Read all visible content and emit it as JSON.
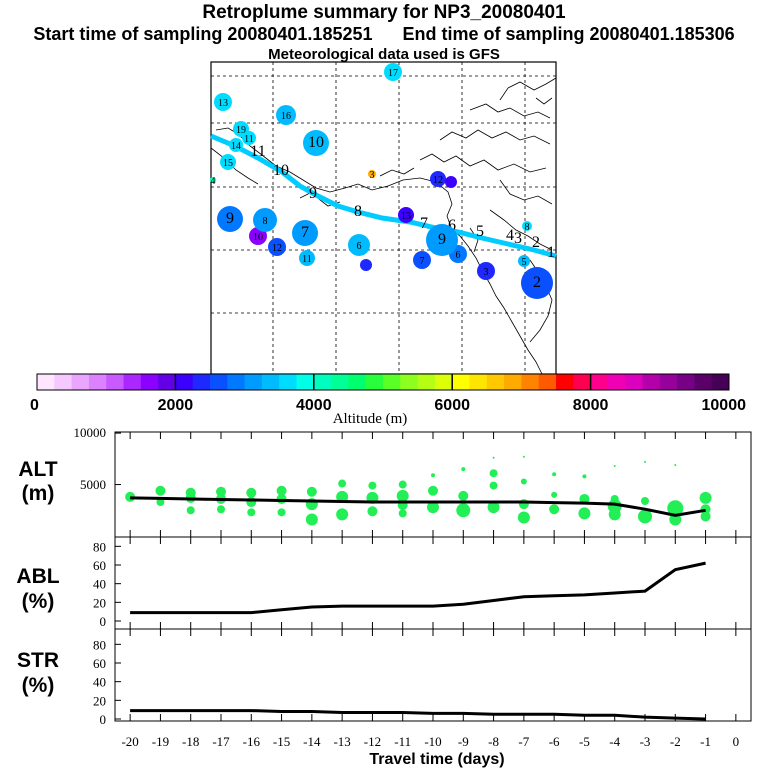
{
  "header": {
    "title": "Retroplume summary for NP3_20080401",
    "sampling_line": "Start time of sampling 20080401.185251      End time of sampling 20080401.185306",
    "met_line": "Meteorological data used is GFS"
  },
  "colorbar": {
    "label": "Altitude (m)",
    "ticks": [
      "0",
      "2000",
      "4000",
      "6000",
      "8000",
      "10000"
    ],
    "colors": [
      "#ffe6ff",
      "#f5c8ff",
      "#eaa6ff",
      "#dc82ff",
      "#c85aff",
      "#aa28ff",
      "#8c00ff",
      "#6400e6",
      "#3c00ff",
      "#1e28ff",
      "#0a50ff",
      "#0078ff",
      "#009bff",
      "#00bcff",
      "#00dcff",
      "#00ffe6",
      "#00ffbe",
      "#00ff96",
      "#00ff6e",
      "#28ff3c",
      "#5aff28",
      "#8cff1e",
      "#b4ff14",
      "#dcff0a",
      "#ffff00",
      "#ffe600",
      "#ffc800",
      "#ffaa00",
      "#ff8200",
      "#ff5a00",
      "#ff0000",
      "#ff0050",
      "#ff008c",
      "#f000b4",
      "#dc00be",
      "#b400aa",
      "#96009b",
      "#780087",
      "#5a0069",
      "#460055"
    ]
  },
  "map": {
    "trajectory_labels": [
      "1",
      "2",
      "3",
      "4",
      "5",
      "6",
      "7",
      "8",
      "9",
      "10",
      "11"
    ],
    "clusters": [
      {
        "label": "2",
        "size": 16,
        "color": "#0a50ff",
        "text_color": "#000"
      },
      {
        "label": "3",
        "size": 9,
        "color": "#1e28ff",
        "text_color": "#000"
      },
      {
        "label": "5",
        "size": 6,
        "color": "#00bcff",
        "text_color": "#000"
      },
      {
        "label": "6",
        "size": 9,
        "color": "#0078ff",
        "text_color": "#000"
      },
      {
        "label": "9",
        "size": 16,
        "color": "#009bff",
        "text_color": "#000"
      },
      {
        "label": "8",
        "size": 5,
        "color": "#00dcff",
        "text_color": "#000"
      },
      {
        "label": "12",
        "size": 8,
        "color": "#1e28ff",
        "text_color": "#000"
      },
      {
        "label": "13",
        "size": 8,
        "color": "#3c00ff",
        "text_color": "#000"
      },
      {
        "label": "3",
        "size": 4,
        "color": "#ffaa00",
        "text_color": "#000"
      },
      {
        "label": "7",
        "size": 9,
        "color": "#0a50ff",
        "text_color": "#000"
      },
      {
        "label": "7",
        "size": 13,
        "color": "#009bff",
        "text_color": "#000"
      },
      {
        "label": "6",
        "size": 11,
        "color": "#00bcff",
        "text_color": "#000"
      },
      {
        "label": "11",
        "size": 8,
        "color": "#00bcff",
        "text_color": "#000"
      },
      {
        "label": "12",
        "size": 9,
        "color": "#0a50ff",
        "text_color": "#000"
      },
      {
        "label": "10",
        "size": 9,
        "color": "#8c00ff",
        "text_color": "#000"
      },
      {
        "label": "9",
        "size": 13,
        "color": "#0078ff",
        "text_color": "#000"
      },
      {
        "label": "8",
        "size": 12,
        "color": "#009bff",
        "text_color": "#000"
      },
      {
        "label": "10",
        "size": 13,
        "color": "#00bcff",
        "text_color": "#000"
      },
      {
        "label": "16",
        "size": 10,
        "color": "#00bcff",
        "text_color": "#000"
      },
      {
        "label": "17",
        "size": 9,
        "color": "#00dcff",
        "text_color": "#000"
      },
      {
        "label": "13",
        "size": 9,
        "color": "#00dcff",
        "text_color": "#000"
      },
      {
        "label": "19",
        "size": 8,
        "color": "#00dcff",
        "text_color": "#000"
      },
      {
        "label": "15",
        "size": 8,
        "color": "#00dcff",
        "text_color": "#000"
      },
      {
        "label": "14",
        "size": 7,
        "color": "#00dcff",
        "text_color": "#000"
      },
      {
        "label": "11",
        "size": 7,
        "color": "#00dcff",
        "text_color": "#000"
      },
      {
        "label": "4",
        "size": 3,
        "color": "#00ffbe",
        "text_color": "#000"
      }
    ]
  },
  "axes": {
    "alt_label": [
      "ALT",
      "(m)"
    ],
    "abl_label": [
      "ABL",
      "(%)"
    ],
    "str_label": [
      "STR",
      "(%)"
    ],
    "alt_ticks": [
      "10000",
      "5000"
    ],
    "pct_ticks": [
      "80",
      "60",
      "40",
      "20",
      "0"
    ],
    "x_ticks": [
      "-20",
      "-19",
      "-18",
      "-17",
      "-16",
      "-15",
      "-14",
      "-13",
      "-12",
      "-11",
      "-10",
      "-9",
      "-8",
      "-7",
      "-6",
      "-5",
      "-4",
      "-3",
      "-2",
      "-1",
      "0"
    ],
    "xlabel": "Travel time (days)"
  },
  "chart_data": [
    {
      "type": "scatter",
      "title": "ALT (m)",
      "ylim": [
        0,
        10000
      ],
      "xlim": [
        -20,
        0
      ],
      "mean_line": {
        "x": [
          -20,
          -19,
          -18,
          -17,
          -16,
          -15,
          -14,
          -13,
          -12,
          -11,
          -10,
          -9,
          -8,
          -7,
          -6,
          -5,
          -4,
          -3,
          -2,
          -1
        ],
        "y": [
          3700,
          3650,
          3600,
          3550,
          3500,
          3450,
          3400,
          3350,
          3300,
          3300,
          3300,
          3300,
          3300,
          3300,
          3250,
          3200,
          3100,
          2600,
          2000,
          2500
        ]
      },
      "points": {
        "x": [
          -20,
          -19,
          -19,
          -18,
          -18,
          -18,
          -17,
          -17,
          -17,
          -16,
          -16,
          -16,
          -15,
          -15,
          -15,
          -14,
          -14,
          -14,
          -13,
          -13,
          -13,
          -12,
          -12,
          -12,
          -11,
          -11,
          -11,
          -11,
          -10,
          -10,
          -10,
          -9,
          -9,
          -9,
          -8,
          -8,
          -8,
          -8,
          -7,
          -7,
          -7,
          -7,
          -6,
          -6,
          -6,
          -5,
          -5,
          -5,
          -4,
          -4,
          -4,
          -4,
          -3,
          -3,
          -3,
          -2,
          -2,
          -2,
          -1,
          -1,
          -1
        ],
        "y": [
          3800,
          4400,
          3300,
          4200,
          3700,
          2500,
          4300,
          3600,
          2600,
          4200,
          3300,
          2300,
          4400,
          3600,
          2300,
          4300,
          3100,
          1600,
          5100,
          3800,
          2100,
          4900,
          3700,
          2400,
          5000,
          3900,
          3000,
          2200,
          5900,
          4400,
          2800,
          6500,
          3900,
          2500,
          7600,
          6100,
          4900,
          2800,
          7700,
          5300,
          3100,
          1800,
          6000,
          4000,
          2600,
          5800,
          3600,
          2200,
          6800,
          3600,
          2900,
          2100,
          7200,
          3400,
          1900,
          6900,
          2700,
          1600,
          3700,
          2600,
          1900
        ],
        "size": [
          5,
          5,
          4,
          5,
          5,
          4,
          5,
          5,
          4,
          5,
          5,
          4,
          5,
          5,
          4,
          5,
          6,
          6,
          4,
          6,
          6,
          4,
          6,
          5,
          4,
          6,
          5,
          4,
          2,
          5,
          6,
          2,
          5,
          7,
          1,
          4,
          4,
          6,
          1,
          3,
          5,
          6,
          2,
          3,
          5,
          2,
          5,
          6,
          1,
          4,
          7,
          6,
          1,
          4,
          7,
          1,
          8,
          6,
          6,
          5,
          5
        ]
      }
    },
    {
      "type": "line",
      "title": "ABL (%)",
      "ylim": [
        0,
        90
      ],
      "x": [
        -20,
        -19,
        -18,
        -17,
        -16,
        -15,
        -14,
        -13,
        -12,
        -11,
        -10,
        -9,
        -8,
        -7,
        -6,
        -5,
        -4,
        -3,
        -2,
        -1
      ],
      "y": [
        9,
        9,
        9,
        9,
        9,
        12,
        15,
        16,
        16,
        16,
        16,
        18,
        22,
        26,
        27,
        28,
        30,
        32,
        55,
        62
      ]
    },
    {
      "type": "line",
      "title": "STR (%)",
      "ylim": [
        0,
        90
      ],
      "x": [
        -20,
        -19,
        -18,
        -17,
        -16,
        -15,
        -14,
        -13,
        -12,
        -11,
        -10,
        -9,
        -8,
        -7,
        -6,
        -5,
        -4,
        -3,
        -2,
        -1
      ],
      "y": [
        9,
        9,
        9,
        9,
        9,
        8,
        8,
        7,
        7,
        7,
        6,
        6,
        5,
        5,
        5,
        4,
        4,
        2,
        1,
        0
      ]
    }
  ]
}
